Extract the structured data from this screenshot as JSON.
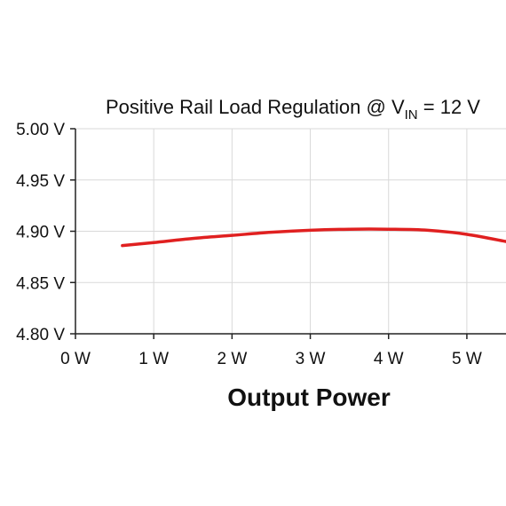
{
  "chart_data": {
    "type": "line",
    "title_prefix": "Positive Rail Load Regulation @ V",
    "title_subscript": "IN",
    "title_suffix": " = 12 V",
    "xlabel": "Output Power",
    "ylabel": "",
    "xlim": [
      0,
      5.5
    ],
    "ylim": [
      4.8,
      5.0
    ],
    "x_ticks": [
      0,
      1,
      2,
      3,
      4,
      5
    ],
    "x_tick_labels": [
      "0 W",
      "1 W",
      "2 W",
      "3 W",
      "4 W",
      "5 W"
    ],
    "y_ticks": [
      4.8,
      4.85,
      4.9,
      4.95,
      5.0
    ],
    "y_tick_labels": [
      "4.80 V",
      "4.85 V",
      "4.90 V",
      "4.95 V",
      "5.00 V"
    ],
    "grid": true,
    "series": [
      {
        "color": "#e02020",
        "x": [
          0.6,
          1.0,
          1.5,
          2.0,
          2.5,
          3.0,
          3.5,
          4.0,
          4.5,
          5.0,
          5.5
        ],
        "y": [
          4.886,
          4.889,
          4.893,
          4.896,
          4.899,
          4.901,
          4.902,
          4.902,
          4.901,
          4.897,
          4.89
        ]
      }
    ]
  }
}
